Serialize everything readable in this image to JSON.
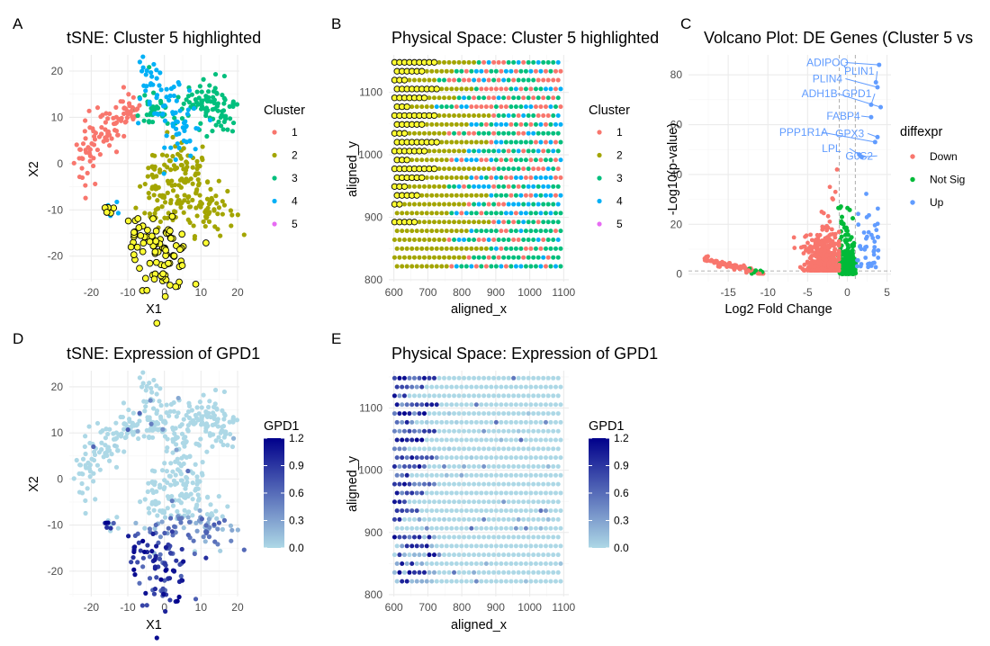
{
  "colors": {
    "cluster_1": "#F8766D",
    "cluster_2": "#A3A500",
    "cluster_3": "#00BF7D",
    "cluster_4": "#00B0F6",
    "cluster_5": "#E76BF3",
    "highlight_fill": "#FFFF33",
    "down": "#F8766D",
    "not_sig": "#00BA38",
    "up": "#619CFF",
    "expr_low": "#ADD8E6",
    "expr_high": "#00008B",
    "grid_major": "#EBEBEB",
    "grid_minor": "#F5F5F5"
  },
  "panels": {
    "A": {
      "tag": "A"
    },
    "B": {
      "tag": "B"
    },
    "C": {
      "tag": "C"
    },
    "D": {
      "tag": "D"
    },
    "E": {
      "tag": "E"
    }
  },
  "chart_data": [
    {
      "id": "A",
      "type": "scatter",
      "title": "tSNE: Cluster 5 highlighted",
      "xlabel": "X1",
      "ylabel": "X2",
      "xlim": [
        -26,
        20.5
      ],
      "ylim": [
        -25.5,
        23.5
      ],
      "xticks": [
        -20,
        -10,
        0,
        10,
        20
      ],
      "yticks": [
        -20,
        -10,
        0,
        10,
        20
      ],
      "grid": true,
      "legend": {
        "title": "Cluster",
        "position": "right",
        "entries": [
          "1",
          "2",
          "3",
          "4",
          "5"
        ]
      },
      "series": [
        {
          "name": "1",
          "regions": [
            [
              -21,
              2,
              2,
              4
            ],
            [
              -15,
              8,
              3,
              3
            ],
            [
              -10,
              12,
              2,
              2
            ]
          ],
          "count": 75
        },
        {
          "name": "2",
          "regions": [
            [
              5,
              -3,
              4,
              5
            ],
            [
              12,
              -10,
              4,
              3
            ],
            [
              -3,
              -3,
              2,
              3
            ],
            [
              0,
              -10,
              3,
              2
            ]
          ],
          "count": 190
        },
        {
          "name": "3",
          "regions": [
            [
              13,
              13,
              4,
              3
            ],
            [
              8,
              12,
              4,
              2
            ],
            [
              -3,
              12,
              3,
              3
            ],
            [
              17,
              10,
              2,
              2
            ]
          ],
          "count": 120
        },
        {
          "name": "4",
          "regions": [
            [
              -5,
              18,
              2,
              3
            ],
            [
              0,
              12,
              3,
              4
            ],
            [
              6,
              7,
              3,
              4
            ],
            [
              -14,
              -10,
              1,
              1
            ]
          ],
          "count": 85
        },
        {
          "name": "5",
          "regions": [
            [
              0,
              -20,
              4,
              4
            ],
            [
              -7,
              -15,
              2,
              2
            ],
            [
              -16,
              -10,
              1,
              1
            ]
          ],
          "count": 95
        }
      ]
    },
    {
      "id": "B",
      "type": "scatter",
      "title": "Physical Space: Cluster 5 highlighted",
      "xlabel": "aligned_x",
      "ylabel": "aligned_y",
      "xlim": [
        585,
        1115
      ],
      "ylim": [
        797,
        1160
      ],
      "xticks": [
        600,
        700,
        800,
        900,
        1000,
        1100
      ],
      "yticks": [
        800,
        900,
        1000,
        1100
      ],
      "grid": true,
      "legend": {
        "title": "Cluster",
        "position": "right",
        "entries": [
          "1",
          "2",
          "3",
          "4",
          "5"
        ]
      },
      "grid_points": {
        "x_start": 602,
        "x_end": 1098,
        "x_step": 14.6,
        "y_start": 808,
        "y_end": 1148,
        "y_step": 14.2,
        "row_offset": 7.3
      },
      "cluster_bands": {
        "cluster_5_until_x": [
          730,
          690,
          640
        ],
        "cluster_2_until_x": [
          880,
          820,
          760
        ]
      }
    },
    {
      "id": "C",
      "type": "scatter",
      "title": "Volcano Plot: DE Genes (Cluster 5 vs",
      "xlabel": "Log2 Fold Change",
      "ylabel": "-Log10(p-value)",
      "xlim": [
        -20,
        5.5
      ],
      "ylim": [
        -3,
        88
      ],
      "xticks": [
        -15,
        -10,
        -5,
        0,
        5
      ],
      "yticks": [
        0,
        20,
        40,
        60,
        80
      ],
      "grid": true,
      "thresholds": {
        "fold_change": [
          -1,
          1
        ],
        "p_value": 1.3
      },
      "legend": {
        "title": "diffexpr",
        "position": "right",
        "entries": [
          "Down",
          "Not Sig",
          "Up"
        ]
      },
      "labeled_genes": [
        {
          "gene": "ADIPOQ",
          "x": 4.0,
          "y": 84
        },
        {
          "gene": "PLIN1",
          "x": 3.6,
          "y": 77
        },
        {
          "gene": "PLIN4",
          "x": 3.8,
          "y": 75
        },
        {
          "gene": "ADH1B",
          "x": 4.2,
          "y": 67
        },
        {
          "gene": "GPD1",
          "x": 3.0,
          "y": 68
        },
        {
          "gene": "FABP4",
          "x": 3.0,
          "y": 63
        },
        {
          "gene": "PPP1R1A",
          "x": 3.5,
          "y": 53
        },
        {
          "gene": "GPX3",
          "x": 3.8,
          "y": 55
        },
        {
          "gene": "LPL",
          "x": 1.5,
          "y": 48
        },
        {
          "gene": "G0S2",
          "x": 1.8,
          "y": 47
        }
      ]
    },
    {
      "id": "D",
      "type": "scatter",
      "title": "tSNE: Expression of GPD1",
      "xlabel": "X1",
      "ylabel": "X2",
      "xlim": [
        -26,
        20.5
      ],
      "ylim": [
        -25.5,
        23.5
      ],
      "xticks": [
        -20,
        -10,
        0,
        10,
        20
      ],
      "yticks": [
        -20,
        -10,
        0,
        10,
        20
      ],
      "grid": true,
      "legend": {
        "title": "GPD1",
        "position": "right",
        "type": "colorbar",
        "range": [
          0,
          1.2
        ],
        "ticks": [
          "1.2",
          "0.9",
          "0.6",
          "0.3",
          "0.0"
        ]
      }
    },
    {
      "id": "E",
      "type": "scatter",
      "title": "Physical Space: Expression of GPD1",
      "xlabel": "aligned_x",
      "ylabel": "aligned_y",
      "xlim": [
        585,
        1115
      ],
      "ylim": [
        797,
        1160
      ],
      "xticks": [
        600,
        700,
        800,
        900,
        1000,
        1100
      ],
      "yticks": [
        800,
        900,
        1000,
        1100
      ],
      "grid": true,
      "legend": {
        "title": "GPD1",
        "position": "right",
        "type": "colorbar",
        "range": [
          0,
          1.2
        ],
        "ticks": [
          "1.2",
          "0.9",
          "0.6",
          "0.3",
          "0.0"
        ]
      }
    }
  ]
}
